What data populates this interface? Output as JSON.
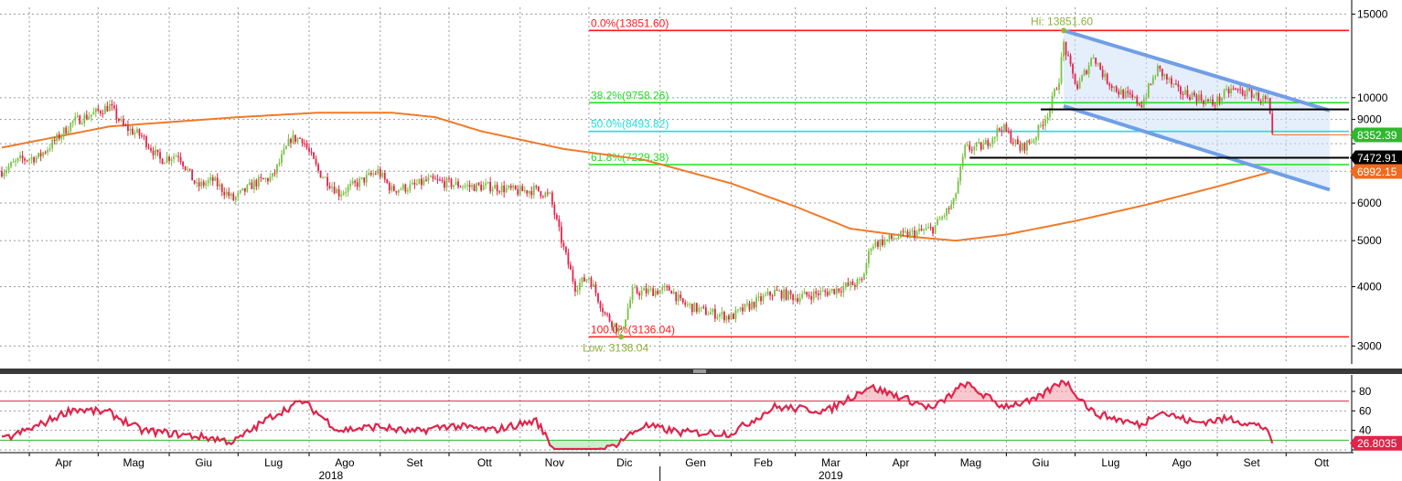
{
  "chart_data": [
    {
      "type": "candlestick",
      "y_scale": "log",
      "ylim": [
        2750,
        15500
      ],
      "ytick_values": [
        3000,
        4000,
        5000,
        6000,
        7000,
        8000,
        9000,
        10000,
        15000
      ],
      "ytick_labels": [
        "3000",
        "4000",
        "5000",
        "6000",
        "",
        "",
        "9000",
        "10000",
        "15000"
      ],
      "x_month_labels": [
        "Apr",
        "Mag",
        "Giu",
        "Lug",
        "Ago",
        "Set",
        "Ott",
        "Nov",
        "Dic",
        "Gen",
        "Feb",
        "Mar",
        "Apr",
        "Mag",
        "Giu",
        "Lug",
        "Ago",
        "Set",
        "Ott"
      ],
      "x_year_labels": [
        "2018",
        "2019"
      ],
      "price_anchors": [
        [
          "2018-03-20",
          7000
        ],
        [
          "2018-03-28",
          7400
        ],
        [
          "2018-04-05",
          7500
        ],
        [
          "2018-04-12",
          8100
        ],
        [
          "2018-04-20",
          8900
        ],
        [
          "2018-04-30",
          9300
        ],
        [
          "2018-05-06",
          9600
        ],
        [
          "2018-05-12",
          8700
        ],
        [
          "2018-05-20",
          8300
        ],
        [
          "2018-05-28",
          7400
        ],
        [
          "2018-06-05",
          7600
        ],
        [
          "2018-06-13",
          6500
        ],
        [
          "2018-06-20",
          6700
        ],
        [
          "2018-06-29",
          6100
        ],
        [
          "2018-07-08",
          6600
        ],
        [
          "2018-07-16",
          6800
        ],
        [
          "2018-07-24",
          8200
        ],
        [
          "2018-07-29",
          8200
        ],
        [
          "2018-08-05",
          7000
        ],
        [
          "2018-08-14",
          6300
        ],
        [
          "2018-08-22",
          6600
        ],
        [
          "2018-08-31",
          7000
        ],
        [
          "2018-09-06",
          6400
        ],
        [
          "2018-09-15",
          6500
        ],
        [
          "2018-09-22",
          6700
        ],
        [
          "2018-10-01",
          6600
        ],
        [
          "2018-10-10",
          6500
        ],
        [
          "2018-10-20",
          6500
        ],
        [
          "2018-10-31",
          6350
        ],
        [
          "2018-11-08",
          6400
        ],
        [
          "2018-11-14",
          6200
        ],
        [
          "2018-11-20",
          4800
        ],
        [
          "2018-11-25",
          4000
        ],
        [
          "2018-12-01",
          4200
        ],
        [
          "2018-12-08",
          3500
        ],
        [
          "2018-12-15",
          3200
        ],
        [
          "2018-12-20",
          3900
        ],
        [
          "2018-12-25",
          3900
        ],
        [
          "2019-01-06",
          3950
        ],
        [
          "2019-01-10",
          3700
        ],
        [
          "2019-01-20",
          3550
        ],
        [
          "2019-02-01",
          3450
        ],
        [
          "2019-02-09",
          3650
        ],
        [
          "2019-02-20",
          3900
        ],
        [
          "2019-03-01",
          3800
        ],
        [
          "2019-03-15",
          3900
        ],
        [
          "2019-03-30",
          4100
        ],
        [
          "2019-04-03",
          4900
        ],
        [
          "2019-04-15",
          5100
        ],
        [
          "2019-04-30",
          5300
        ],
        [
          "2019-05-09",
          6000
        ],
        [
          "2019-05-14",
          7800
        ],
        [
          "2019-05-22",
          7900
        ],
        [
          "2019-05-30",
          8700
        ],
        [
          "2019-06-07",
          7800
        ],
        [
          "2019-06-13",
          8200
        ],
        [
          "2019-06-20",
          9500
        ],
        [
          "2019-06-24",
          11000
        ],
        [
          "2019-06-26",
          13000
        ],
        [
          "2019-06-29",
          11500
        ],
        [
          "2019-07-02",
          10500
        ],
        [
          "2019-07-09",
          12300
        ],
        [
          "2019-07-14",
          11000
        ],
        [
          "2019-07-20",
          10300
        ],
        [
          "2019-07-30",
          9700
        ],
        [
          "2019-08-06",
          11500
        ],
        [
          "2019-08-15",
          10300
        ],
        [
          "2019-08-22",
          10100
        ],
        [
          "2019-08-30",
          9700
        ],
        [
          "2019-09-07",
          10400
        ],
        [
          "2019-09-16",
          10200
        ],
        [
          "2019-09-23",
          9800
        ],
        [
          "2019-09-25",
          8400
        ]
      ],
      "ma_anchors": [
        [
          "2018-03-20",
          7850
        ],
        [
          "2018-05-06",
          8700
        ],
        [
          "2018-07-01",
          9100
        ],
        [
          "2018-08-05",
          9300
        ],
        [
          "2018-09-06",
          9300
        ],
        [
          "2018-09-25",
          9100
        ],
        [
          "2018-10-15",
          8500
        ],
        [
          "2018-11-20",
          7800
        ],
        [
          "2018-12-25",
          7400
        ],
        [
          "2019-02-01",
          6600
        ],
        [
          "2019-03-01",
          5900
        ],
        [
          "2019-03-25",
          5300
        ],
        [
          "2019-04-20",
          5100
        ],
        [
          "2019-05-10",
          5000
        ],
        [
          "2019-06-01",
          5150
        ],
        [
          "2019-07-01",
          5500
        ],
        [
          "2019-08-01",
          5950
        ],
        [
          "2019-09-01",
          6500
        ],
        [
          "2019-09-25",
          6992
        ]
      ],
      "rsi_anchors": [
        [
          "2018-03-20",
          30
        ],
        [
          "2018-04-05",
          45
        ],
        [
          "2018-04-20",
          62
        ],
        [
          "2018-05-06",
          58
        ],
        [
          "2018-05-20",
          40
        ],
        [
          "2018-06-05",
          36
        ],
        [
          "2018-06-20",
          32
        ],
        [
          "2018-06-29",
          28
        ],
        [
          "2018-07-16",
          55
        ],
        [
          "2018-07-29",
          70
        ],
        [
          "2018-08-14",
          40
        ],
        [
          "2018-08-31",
          44
        ],
        [
          "2018-09-15",
          38
        ],
        [
          "2018-10-01",
          45
        ],
        [
          "2018-10-20",
          40
        ],
        [
          "2018-11-08",
          50
        ],
        [
          "2018-11-16",
          20
        ],
        [
          "2018-12-01",
          16
        ],
        [
          "2018-12-10",
          22
        ],
        [
          "2018-12-25",
          45
        ],
        [
          "2019-01-10",
          38
        ],
        [
          "2019-02-01",
          37
        ],
        [
          "2019-02-20",
          64
        ],
        [
          "2019-03-15",
          60
        ],
        [
          "2019-04-02",
          85
        ],
        [
          "2019-04-15",
          75
        ],
        [
          "2019-04-30",
          62
        ],
        [
          "2019-05-14",
          88
        ],
        [
          "2019-05-30",
          65
        ],
        [
          "2019-06-13",
          70
        ],
        [
          "2019-06-26",
          92
        ],
        [
          "2019-07-09",
          58
        ],
        [
          "2019-07-30",
          45
        ],
        [
          "2019-08-06",
          60
        ],
        [
          "2019-08-22",
          48
        ],
        [
          "2019-09-07",
          52
        ],
        [
          "2019-09-23",
          42
        ],
        [
          "2019-09-25",
          26.8
        ]
      ],
      "rsi_ylim": [
        20,
        95
      ],
      "rsi_ytick_values": [
        20,
        40,
        60,
        80
      ],
      "rsi_ytick_labels": [
        "",
        "40",
        "60",
        "80"
      ],
      "rsi_bands": [
        70,
        30
      ],
      "fibonacci_levels": [
        {
          "label": "0.0%(13851.60)",
          "value": 13851.6,
          "color": "#ff1a1a"
        },
        {
          "label": "38.2%(9758.26)",
          "value": 9758.26,
          "color": "#22dd22"
        },
        {
          "label": "50.0%(8493.82)",
          "value": 8493.82,
          "color": "#22dddd"
        },
        {
          "label": "61.8%(7229.38)",
          "value": 7229.38,
          "color": "#22dd22"
        },
        {
          "label": "100.0%(3136.04)",
          "value": 3136.04,
          "color": "#ff1a1a"
        }
      ],
      "high_annotation": "Hi: 13851.60",
      "low_annotation": "Low: 3136.04",
      "channel_upper": [
        [
          "2019-06-26",
          13851.6
        ],
        [
          "2019-10-20",
          9400
        ]
      ],
      "channel_lower": [
        [
          "2019-06-26",
          9600
        ],
        [
          "2019-10-20",
          6400
        ]
      ],
      "support_lines": [
        {
          "from": "2019-06-16",
          "value": 9450
        },
        {
          "from": "2019-05-16",
          "value": 7472.91
        }
      ],
      "price_tags": [
        {
          "text": "8352.39",
          "value": 8352.39,
          "bg": "#2fb82f",
          "fg": "#ffffff"
        },
        {
          "text": "7472.91",
          "value": 7472.91,
          "bg": "#000000",
          "fg": "#ffffff"
        },
        {
          "text": "6992.15",
          "value": 6992.15,
          "bg": "#f36a1f",
          "fg": "#ffffff"
        }
      ],
      "rsi_tag": {
        "text": "26.8035",
        "value": 26.8035
      },
      "colors": {
        "up": "#7ac142",
        "down": "#e0244a",
        "ma": "#f07a2a",
        "channel": "#6f9fe6",
        "rsi": "#e0244a"
      }
    }
  ]
}
